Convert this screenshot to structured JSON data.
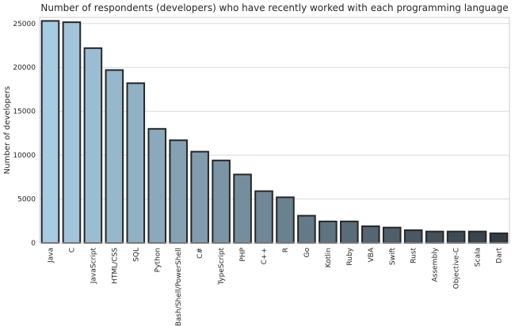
{
  "chart_data": {
    "type": "bar",
    "title": "Number of respondents (developers) who have recently worked with each programming language",
    "xlabel": "",
    "ylabel": "Number of developers",
    "categories": [
      "Java",
      "C",
      "JavaScript",
      "HTML/CSS",
      "SQL",
      "Python",
      "Bash/Shell/PowerShell",
      "C#",
      "TypeScript",
      "PHP",
      "C++",
      "R",
      "Go",
      "Kotlin",
      "Ruby",
      "VBA",
      "Swift",
      "Rust",
      "Assembly",
      "Objective-C",
      "Scala",
      "Dart"
    ],
    "values": [
      25300,
      25150,
      22200,
      19700,
      18200,
      13000,
      11700,
      10400,
      9400,
      7800,
      5900,
      5200,
      3100,
      2450,
      2450,
      1900,
      1750,
      1450,
      1300,
      1300,
      1300,
      1100
    ],
    "ylim": [
      0,
      25700
    ],
    "yticks": [
      0,
      5000,
      10000,
      15000,
      20000,
      25000
    ],
    "grid": true,
    "legend": "none",
    "palette": {
      "start": "#a6cbe2",
      "end": "#343d45",
      "edge": "#262626"
    }
  }
}
